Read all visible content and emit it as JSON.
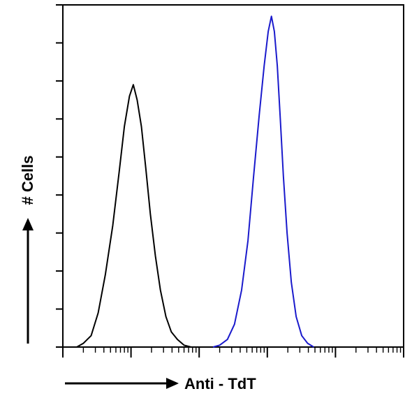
{
  "chart_data": {
    "type": "line",
    "chart_subtype": "flow cytometry histogram overlay",
    "xlabel": "Anti - TdT",
    "ylabel": "# Cells",
    "x_scale": "log",
    "xlim": [
      1,
      100000
    ],
    "ylim": [
      0,
      9
    ],
    "grid": false,
    "legend": "none",
    "series": [
      {
        "color": "#000000",
        "x": [
          1.6,
          2.0,
          2.6,
          3.3,
          4.2,
          5.4,
          6.7,
          8.0,
          9.5,
          10.8,
          12.3,
          14.2,
          16.5,
          19.2,
          22.8,
          27.0,
          32.5,
          39.0,
          48.0,
          60.0,
          76.0
        ],
        "y": [
          0.0,
          0.1,
          0.3,
          0.9,
          1.9,
          3.2,
          4.6,
          5.8,
          6.6,
          6.9,
          6.5,
          5.8,
          4.7,
          3.5,
          2.4,
          1.5,
          0.8,
          0.4,
          0.2,
          0.05,
          0.0
        ]
      },
      {
        "color": "#1a1acc",
        "x": [
          160,
          200,
          260,
          330,
          420,
          520,
          630,
          760,
          900,
          1030,
          1150,
          1270,
          1400,
          1550,
          1720,
          1950,
          2250,
          2650,
          3200,
          3900,
          4800
        ],
        "y": [
          0.0,
          0.05,
          0.2,
          0.6,
          1.5,
          2.8,
          4.5,
          6.1,
          7.4,
          8.3,
          8.7,
          8.3,
          7.4,
          6.0,
          4.5,
          3.0,
          1.7,
          0.8,
          0.3,
          0.1,
          0.0
        ]
      }
    ]
  }
}
